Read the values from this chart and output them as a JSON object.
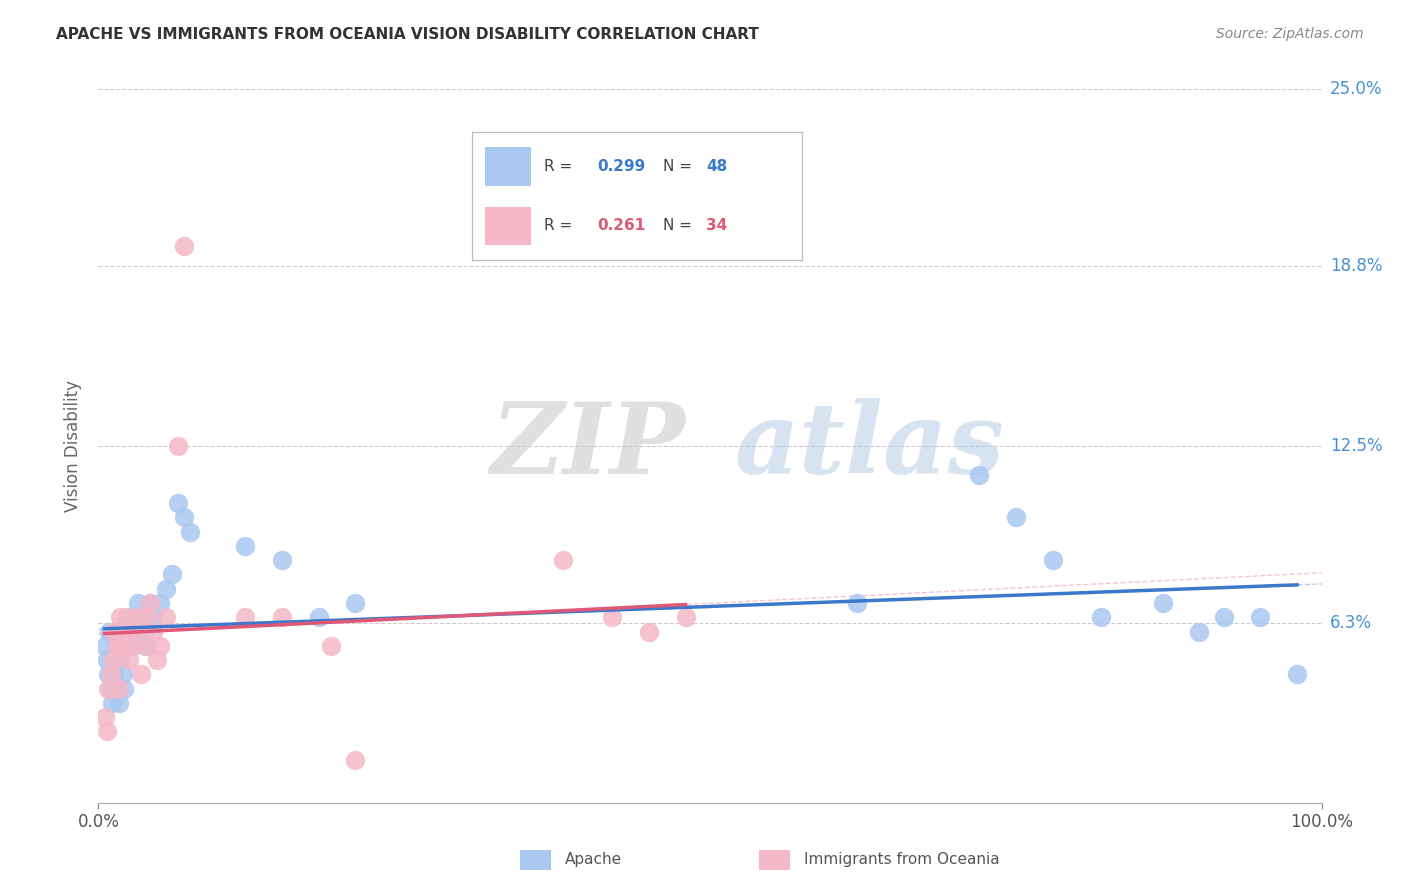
{
  "title": "APACHE VS IMMIGRANTS FROM OCEANIA VISION DISABILITY CORRELATION CHART",
  "source": "Source: ZipAtlas.com",
  "ylabel": "Vision Disability",
  "xlim": [
    0,
    1.0
  ],
  "ylim": [
    0,
    0.25
  ],
  "yticks": [
    0.0,
    0.063,
    0.125,
    0.188,
    0.25
  ],
  "ytick_labels": [
    "",
    "6.3%",
    "12.5%",
    "18.8%",
    "25.0%"
  ],
  "xtick_labels": [
    "0.0%",
    "100.0%"
  ],
  "background_color": "#ffffff",
  "grid_color": "#cccccc",
  "watermark_zip": "ZIP",
  "watermark_atlas": "atlas",
  "apache_color": "#a8c8f0",
  "oceania_color": "#f5b8c8",
  "apache_line_color": "#3a78c9",
  "oceania_line_color": "#e05878",
  "right_label_color": "#4a90d9",
  "legend_r_apache": "0.299",
  "legend_n_apache": "48",
  "legend_r_oceania": "0.261",
  "legend_n_oceania": "34",
  "apache_points_x": [
    0.005,
    0.007,
    0.008,
    0.009,
    0.01,
    0.011,
    0.012,
    0.013,
    0.014,
    0.015,
    0.016,
    0.017,
    0.018,
    0.019,
    0.02,
    0.021,
    0.022,
    0.023,
    0.025,
    0.027,
    0.028,
    0.03,
    0.032,
    0.035,
    0.038,
    0.04,
    0.042,
    0.045,
    0.05,
    0.055,
    0.06,
    0.065,
    0.07,
    0.075,
    0.12,
    0.15,
    0.18,
    0.21,
    0.62,
    0.72,
    0.75,
    0.78,
    0.82,
    0.87,
    0.9,
    0.92,
    0.95,
    0.98
  ],
  "apache_points_y": [
    0.055,
    0.05,
    0.045,
    0.06,
    0.04,
    0.035,
    0.05,
    0.045,
    0.06,
    0.055,
    0.04,
    0.035,
    0.05,
    0.055,
    0.045,
    0.04,
    0.06,
    0.055,
    0.065,
    0.06,
    0.055,
    0.065,
    0.07,
    0.065,
    0.06,
    0.055,
    0.07,
    0.065,
    0.07,
    0.075,
    0.08,
    0.105,
    0.1,
    0.095,
    0.09,
    0.085,
    0.065,
    0.07,
    0.07,
    0.115,
    0.1,
    0.085,
    0.065,
    0.07,
    0.06,
    0.065,
    0.065,
    0.045
  ],
  "oceania_points_x": [
    0.005,
    0.007,
    0.008,
    0.01,
    0.012,
    0.013,
    0.015,
    0.017,
    0.018,
    0.02,
    0.022,
    0.023,
    0.025,
    0.027,
    0.03,
    0.032,
    0.035,
    0.038,
    0.04,
    0.042,
    0.045,
    0.048,
    0.05,
    0.055,
    0.065,
    0.07,
    0.12,
    0.15,
    0.19,
    0.21,
    0.38,
    0.42,
    0.45,
    0.48
  ],
  "oceania_points_y": [
    0.03,
    0.025,
    0.04,
    0.045,
    0.05,
    0.06,
    0.055,
    0.04,
    0.065,
    0.055,
    0.06,
    0.065,
    0.05,
    0.055,
    0.06,
    0.065,
    0.045,
    0.055,
    0.065,
    0.07,
    0.06,
    0.05,
    0.055,
    0.065,
    0.125,
    0.195,
    0.065,
    0.065,
    0.055,
    0.015,
    0.085,
    0.065,
    0.06,
    0.065
  ]
}
